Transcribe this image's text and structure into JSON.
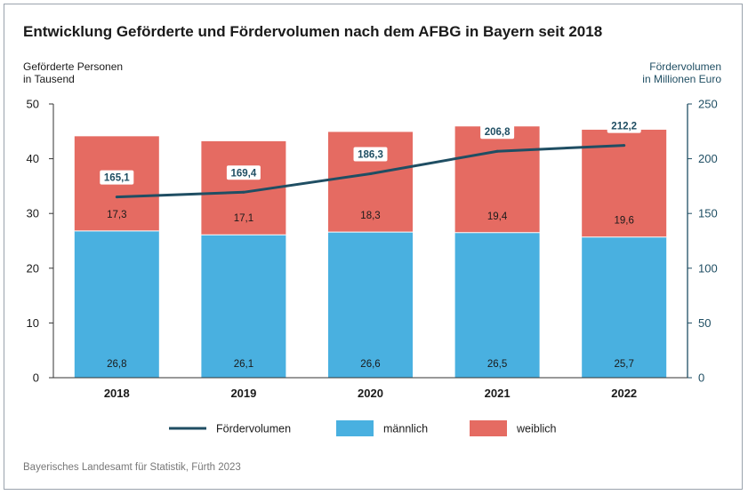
{
  "chart_data": {
    "type": "bar",
    "title": "Entwicklung Geförderte und Fördervolumen nach dem AFBG in Bayern seit 2018",
    "categories": [
      "2018",
      "2019",
      "2020",
      "2021",
      "2022"
    ],
    "stacked": true,
    "y_left": {
      "label_line1": "Geförderte Personen",
      "label_line2": "in Tausend",
      "ylim": [
        0,
        50
      ],
      "ticks": [
        0,
        10,
        20,
        30,
        40,
        50
      ]
    },
    "y_right": {
      "label_line1": "Fördervolumen",
      "label_line2": "in Millionen Euro",
      "ylim": [
        0,
        250
      ],
      "ticks": [
        0,
        50,
        100,
        150,
        200,
        250
      ]
    },
    "series": [
      {
        "name": "männlich",
        "type": "bar",
        "axis": "left",
        "color": "#49b0e0",
        "values": [
          26.8,
          26.1,
          26.6,
          26.5,
          25.7
        ],
        "labels": [
          "26,8",
          "26,1",
          "26,6",
          "26,5",
          "25,7"
        ]
      },
      {
        "name": "weiblich",
        "type": "bar",
        "axis": "left",
        "color": "#e56b62",
        "values": [
          17.3,
          17.1,
          18.3,
          19.4,
          19.6
        ],
        "labels": [
          "17,3",
          "17,1",
          "18,3",
          "19,4",
          "19,6"
        ]
      },
      {
        "name": "Fördervolumen",
        "type": "line",
        "axis": "right",
        "color": "#1f4e63",
        "values": [
          165.1,
          169.4,
          186.3,
          206.8,
          212.2
        ],
        "labels": [
          "165,1",
          "169,4",
          "186,3",
          "206,8",
          "212,2"
        ]
      }
    ],
    "legend_order": [
      "Fördervolumen",
      "männlich",
      "weiblich"
    ],
    "legend_position": "bottom",
    "grid": false,
    "source": "Bayerisches Landesamt für Statistik, Fürth 2023",
    "axis_color": "#1f4e63"
  }
}
